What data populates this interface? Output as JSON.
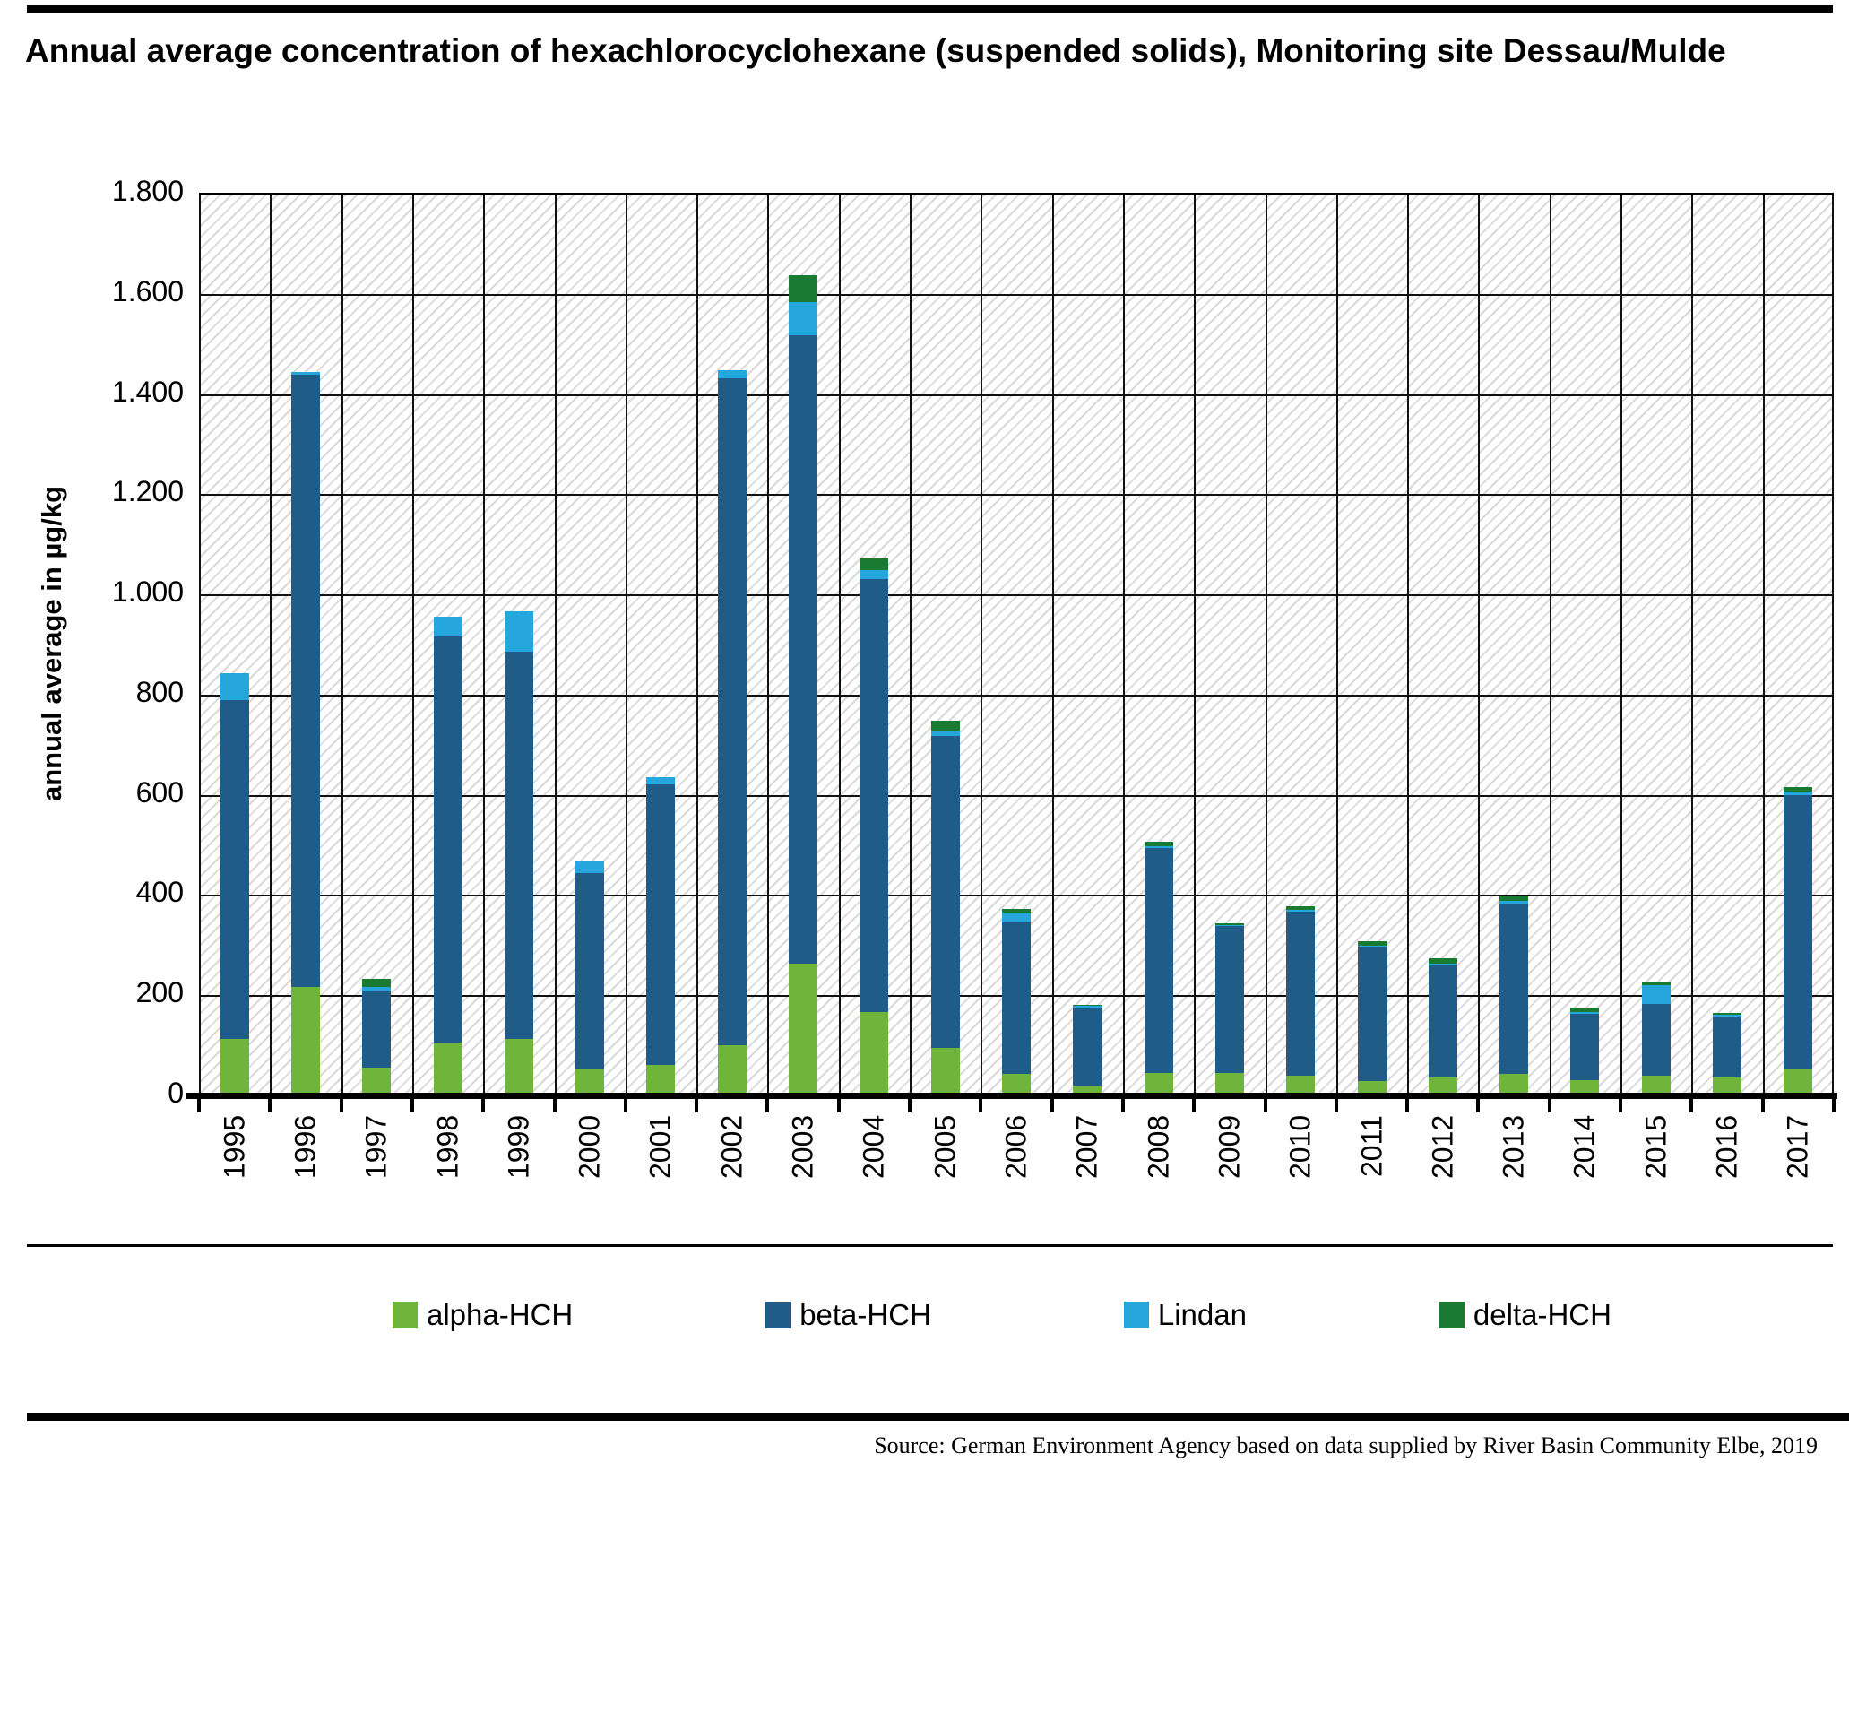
{
  "title": "Annual average concentration of hexachlorocyclohexane (suspended solids), Monitoring site Dessau/Mulde",
  "source": "Source: German Environment Agency based on data supplied by River Basin Community Elbe, 2019",
  "chart_data": {
    "type": "bar",
    "stacked": true,
    "title": "Annual average concentration of hexachlorocyclohexane (suspended solids), Monitoring site Dessau/Mulde",
    "xlabel": "",
    "ylabel": "annual average in µg/kg",
    "ylim": [
      0,
      1800
    ],
    "ytick_step": 200,
    "ytick_labels": [
      "0",
      "200",
      "400",
      "600",
      "800",
      "1.000",
      "1.200",
      "1.400",
      "1.600",
      "1.800"
    ],
    "grid": "horizontal and vertical black gridlines on diagonal-hatched background",
    "legend_position": "bottom",
    "categories": [
      "1995",
      "1996",
      "1997",
      "1998",
      "1999",
      "2000",
      "2001",
      "2002",
      "2003",
      "2004",
      "2005",
      "2006",
      "2007",
      "2008",
      "2009",
      "2010",
      "2011",
      "2012",
      "2013",
      "2014",
      "2015",
      "2016",
      "2017"
    ],
    "series": [
      {
        "name": "alpha-HCH",
        "color": "#6FB53C",
        "values": [
          115,
          218,
          58,
          107,
          115,
          55,
          62,
          102,
          264,
          168,
          97,
          45,
          22,
          46,
          46,
          41,
          30,
          37,
          44,
          32,
          41,
          37,
          55
        ]
      },
      {
        "name": "beta-HCH",
        "color": "#1F5C87",
        "values": [
          675,
          1222,
          151,
          811,
          772,
          390,
          560,
          1331,
          1256,
          865,
          622,
          303,
          156,
          450,
          294,
          327,
          269,
          224,
          341,
          133,
          144,
          122,
          546
        ]
      },
      {
        "name": "Lindan",
        "color": "#25A7DE",
        "values": [
          55,
          6,
          10,
          40,
          81,
          25,
          15,
          16,
          65,
          18,
          11,
          18,
          2,
          4,
          2,
          5,
          2,
          4,
          5,
          4,
          37,
          3,
          8
        ]
      },
      {
        "name": "delta-HCH",
        "color": "#187B31",
        "values": [
          0,
          0,
          16,
          0,
          0,
          0,
          0,
          0,
          54,
          24,
          20,
          8,
          3,
          8,
          3,
          7,
          8,
          10,
          9,
          8,
          6,
          4,
          9
        ]
      }
    ],
    "totals": [
      845,
      1446,
      235,
      958,
      968,
      470,
      637,
      1449,
      1639,
      1075,
      750,
      374,
      183,
      508,
      345,
      380,
      309,
      275,
      399,
      177,
      228,
      166,
      618
    ]
  }
}
